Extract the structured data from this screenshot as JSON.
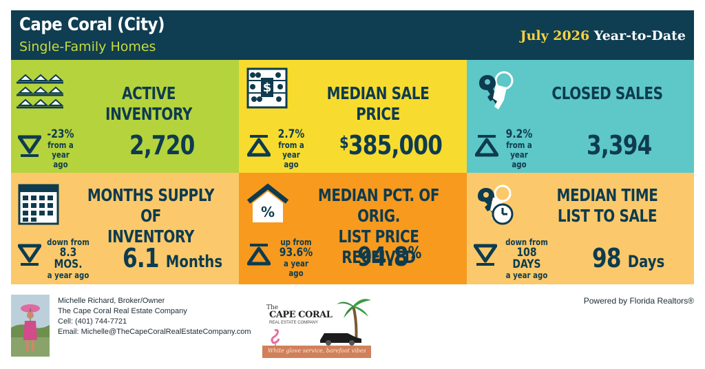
{
  "header": {
    "title": "Cape Coral (City)",
    "subtitle": "Single-Family Homes",
    "period_month": "July 2026",
    "period_label": "Year-to-Date"
  },
  "tiles": {
    "active_inventory": {
      "title": "ACTIVE INVENTORY",
      "change": "-23%",
      "change_sub1": "from a",
      "change_sub2": "year ago",
      "value": "2,720",
      "direction": "down",
      "color": "#b5d33d",
      "icon": "houses-icon"
    },
    "median_sale_price": {
      "title": "MEDIAN SALE PRICE",
      "change": "2.7%",
      "change_sub1": "from a",
      "change_sub2": "year ago",
      "value_symbol": "$",
      "value": "385,000",
      "direction": "up",
      "color": "#f7dc2f",
      "icon": "abacus-icon"
    },
    "closed_sales": {
      "title": "CLOSED SALES",
      "change": "9.2%",
      "change_sub1": "from a",
      "change_sub2": "year ago",
      "value": "3,394",
      "direction": "up",
      "color": "#5ec7c8",
      "icon": "keys-icon"
    },
    "months_supply": {
      "title_line1": "MONTHS SUPPLY OF",
      "title_line2": "INVENTORY",
      "change_sub1": "down from",
      "change": "8.3 MOS.",
      "change_sub2": "a year ago",
      "value": "6.1",
      "unit": "Months",
      "direction": "down",
      "color": "#fbc96b",
      "icon": "calendar-icon"
    },
    "median_pct": {
      "title_line1": "MEDIAN PCT. OF ORIG.",
      "title_line2": "LIST PRICE RECEIVED",
      "change_sub1": "up from",
      "change": "93.6%",
      "change_sub2": "a year ago",
      "value": "94.8",
      "unit": "%",
      "direction": "up",
      "color": "#f79a1e",
      "icon": "house-percent-icon"
    },
    "median_time": {
      "title_line1": "MEDIAN TIME",
      "title_line2": "LIST TO SALE",
      "change_sub1": "down from",
      "change": "108 DAYS",
      "change_sub2": "a year ago",
      "value": "98",
      "unit": "Days",
      "direction": "down",
      "color": "#fbc96b",
      "icon": "keys-clock-icon"
    }
  },
  "footer": {
    "agent_name": "Michelle Richard, Broker/Owner",
    "company": "The Cape Coral Real Estate Company",
    "cell": "Cell: (401) 744-7721",
    "email": "Email: Michelle@TheCapeCoralRealEstateCompany.com",
    "logo_the": "The",
    "logo_name": "CAPE CORAL",
    "logo_sub": "REAL ESTATE COMPANY",
    "logo_tagline": "White glove service, barefoot vibes",
    "powered_by": "Powered by Florida Realtors®"
  }
}
